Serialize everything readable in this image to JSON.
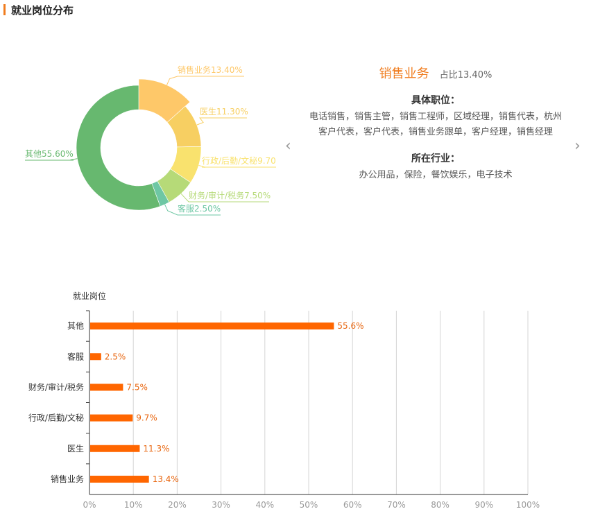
{
  "header": {
    "title": "就业岗位分布"
  },
  "detail": {
    "name": "销售业务",
    "share": "占比13.40%",
    "positions_heading": "具体职位：",
    "positions_text": "电话销售，销售主管，销售工程师，区域经理，销售代表，杭州客户代表，客户代表，销售业务跟单，客户经理，销售经理",
    "industry_heading": "所在行业：",
    "industry_text": "办公用品，保险，餐饮娱乐，电子技术"
  },
  "nav": {
    "prev": "‹",
    "next": "›"
  },
  "colors": {
    "accent": "#f07c1e",
    "bar": "#ff6600"
  },
  "chart_data": [
    {
      "type": "pie",
      "variant": "donut",
      "highlighted": "销售业务",
      "slices": [
        {
          "label": "销售业务13.40%",
          "name": "销售业务",
          "value": 13.4,
          "color": "#fec869"
        },
        {
          "label": "医生11.30%",
          "name": "医生",
          "value": 11.3,
          "color": "#f7cf62"
        },
        {
          "label": "行政/后勤/文秘9.70",
          "name": "行政/后勤/文秘",
          "value": 9.7,
          "color": "#f9e26e"
        },
        {
          "label": "财务/审计/税务7.50%",
          "name": "财务/审计/税务",
          "value": 7.5,
          "color": "#b6da78"
        },
        {
          "label": "客服2.50%",
          "name": "客服",
          "value": 2.5,
          "color": "#6ec7a4"
        },
        {
          "label": "其他55.60%",
          "name": "其他",
          "value": 55.6,
          "color": "#67b86f"
        }
      ]
    },
    {
      "type": "bar",
      "orientation": "horizontal",
      "ylabel": "就业岗位",
      "categories": [
        "其他",
        "客服",
        "财务/审计/税务",
        "行政/后勤/文秘",
        "医生",
        "销售业务"
      ],
      "values": [
        55.6,
        2.5,
        7.5,
        9.7,
        11.3,
        13.4
      ],
      "value_labels": [
        "55.6%",
        "2.5%",
        "7.5%",
        "9.7%",
        "11.3%",
        "13.4%"
      ],
      "xlim": [
        0,
        100
      ],
      "xticks": [
        "0%",
        "10%",
        "20%",
        "30%",
        "40%",
        "50%",
        "60%",
        "70%",
        "80%",
        "90%",
        "100%"
      ],
      "grid": true
    }
  ]
}
